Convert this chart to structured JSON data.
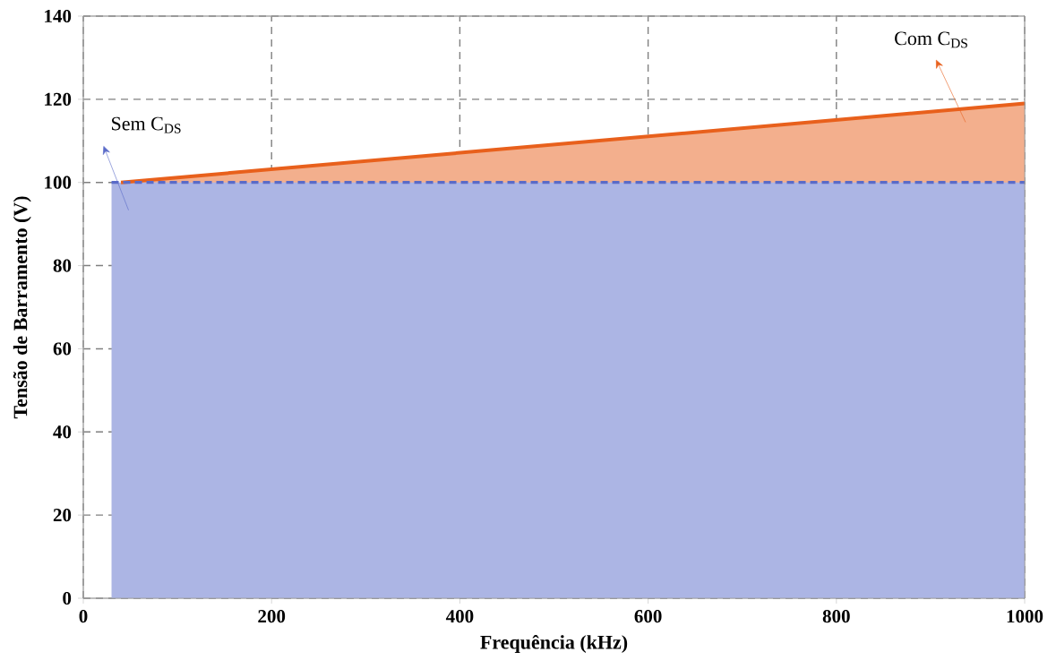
{
  "chart_data": {
    "type": "area",
    "xlabel": "Frequência (kHz)",
    "ylabel": "Tensão de Barramento (V)",
    "xlim": [
      0,
      1000
    ],
    "ylim": [
      0,
      140
    ],
    "xticks": [
      0,
      200,
      400,
      600,
      800,
      1000
    ],
    "yticks": [
      0,
      20,
      40,
      60,
      80,
      100,
      120,
      140
    ],
    "grid": true,
    "series": [
      {
        "name": "Com C$_{DS}$",
        "color": "#e8601c",
        "x": [
          40,
          1000
        ],
        "values": [
          100,
          119
        ],
        "line_style": "solid"
      },
      {
        "name": "Sem C$_{DS}$",
        "color": "#5a6bc8",
        "x": [
          30,
          1000
        ],
        "values": [
          100,
          100
        ],
        "line_style": "dashed"
      }
    ]
  }
}
